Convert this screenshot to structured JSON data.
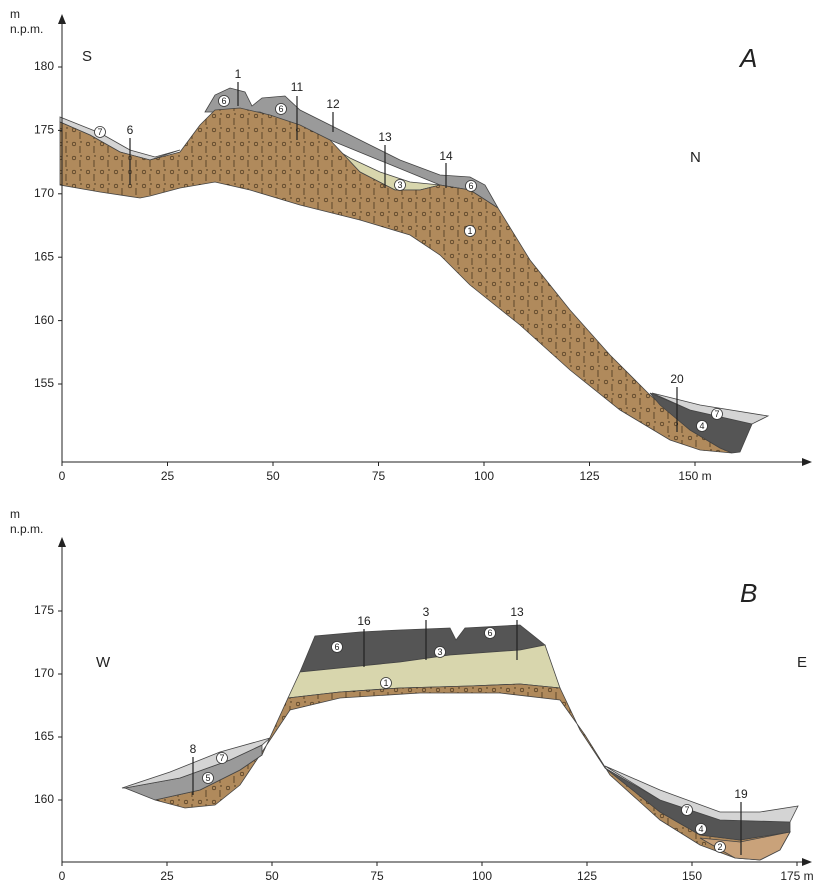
{
  "panels": [
    {
      "letter": "A",
      "y_unit": "m",
      "y_unit_sub": "n.p.m.",
      "left_direction": "S",
      "right_direction": "N",
      "yticks": [
        180,
        175,
        170,
        165,
        160,
        155
      ],
      "xticks": [
        0,
        25,
        50,
        75,
        100,
        125,
        "150 m"
      ],
      "boreholes": [
        "1",
        "11",
        "12",
        "13",
        "14",
        "6",
        "20"
      ],
      "layers": [
        "7",
        "6",
        "6",
        "3",
        "6",
        "1",
        "7",
        "4"
      ]
    },
    {
      "letter": "B",
      "y_unit": "m",
      "y_unit_sub": "n.p.m.",
      "left_direction": "W",
      "right_direction": "E",
      "yticks": [
        175,
        170,
        165,
        160
      ],
      "xticks": [
        0,
        25,
        50,
        75,
        100,
        125,
        150,
        "175 m"
      ],
      "boreholes": [
        "8",
        "16",
        "3",
        "13",
        "19"
      ],
      "layers": [
        "7",
        "5",
        "6",
        "3",
        "6",
        "1",
        "7",
        "4",
        "2"
      ]
    }
  ]
}
